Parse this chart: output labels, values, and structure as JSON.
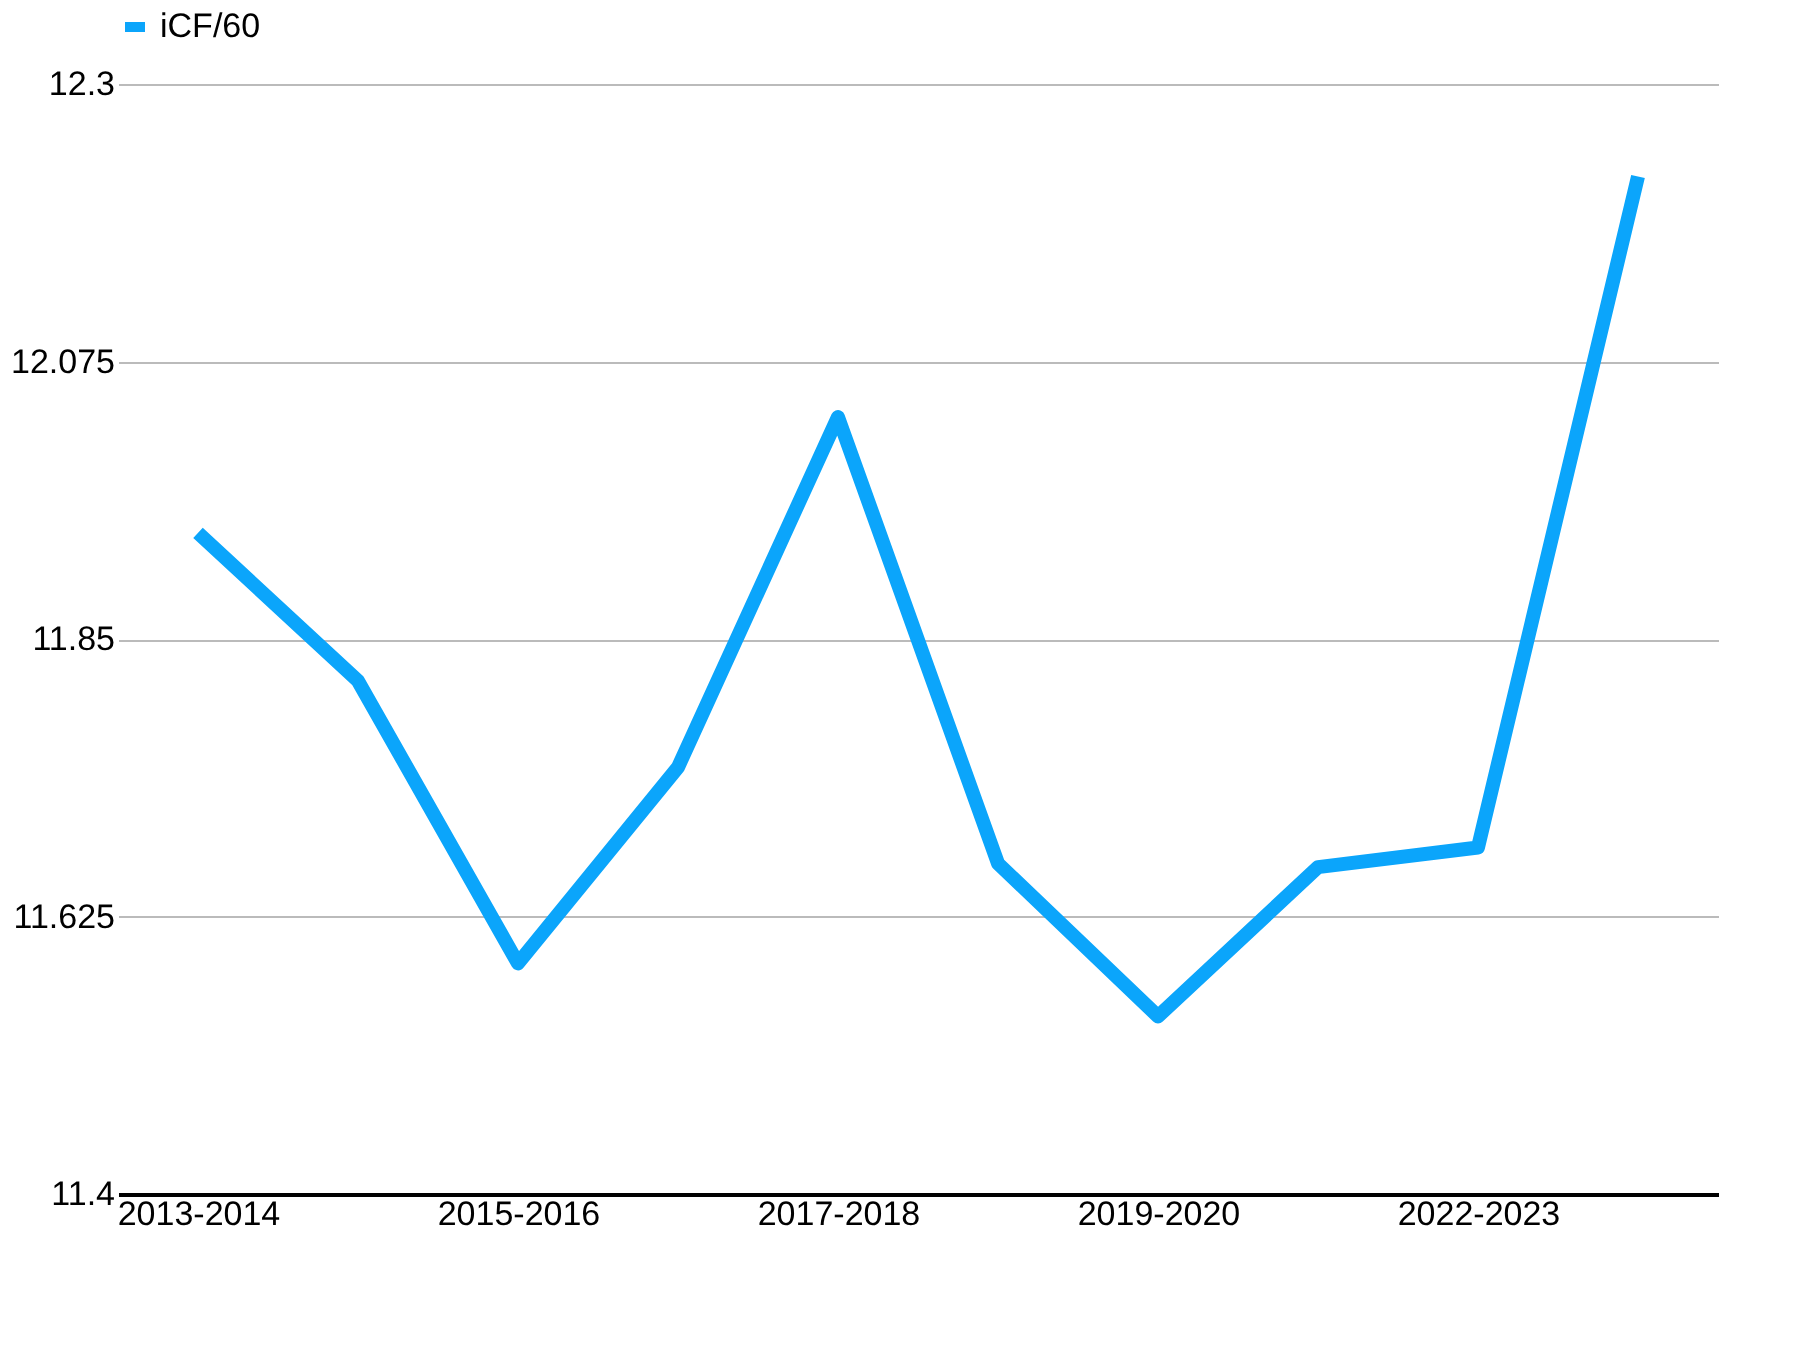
{
  "chart_data": {
    "type": "line",
    "categories": [
      "2013-2014",
      null,
      "2015-2016",
      null,
      "2017-2018",
      null,
      "2019-2020",
      null,
      "2022-2023",
      null
    ],
    "series": [
      {
        "name": "iCF/60",
        "color": "#0ba5fb",
        "values": [
          11.936,
          11.816,
          11.587,
          11.746,
          12.03,
          11.668,
          11.544,
          11.665,
          11.681,
          12.225
        ]
      }
    ],
    "ylim": [
      11.4,
      12.3
    ],
    "yticks": [
      11.4,
      11.625,
      11.85,
      12.075,
      12.3
    ],
    "grid": "y",
    "legend": "top",
    "marker": "none",
    "line_style": "solid"
  }
}
